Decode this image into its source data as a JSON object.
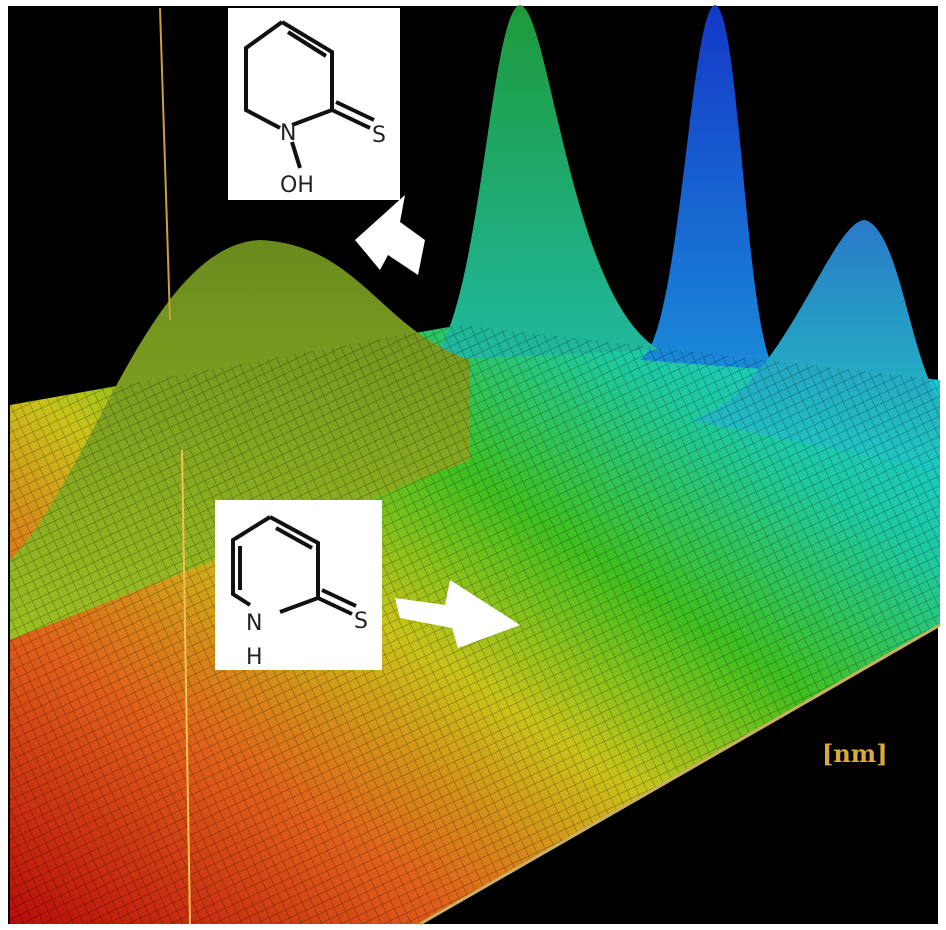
{
  "figure": {
    "molecules": [
      {
        "atoms": [
          "N",
          "S",
          "OH"
        ]
      },
      {
        "atoms": [
          "N",
          "S",
          "H"
        ]
      }
    ],
    "axis_label": "[nm]"
  }
}
